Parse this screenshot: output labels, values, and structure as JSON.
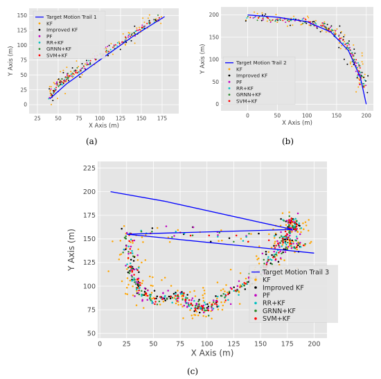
{
  "colors": {
    "background": "#e5e5e5",
    "grid": "#ffffff",
    "target": "#0000ff",
    "kf": "#ffa500",
    "improved_kf": "#000000",
    "pf": "#c000c0",
    "rr_kf": "#00c0c0",
    "grnn_kf": "#2e8b2e",
    "svm_kf": "#ff0000"
  },
  "chart_data": [
    {
      "id": "a",
      "type": "scatter",
      "caption": "(a)",
      "xlabel": "X Axis (m)",
      "ylabel": "Y Axis (m)",
      "xlim": [
        15,
        195
      ],
      "ylim": [
        -15,
        162
      ],
      "xticks": [
        25,
        50,
        75,
        100,
        125,
        150,
        175
      ],
      "yticks": [
        0,
        25,
        50,
        75,
        100,
        125,
        150
      ],
      "legend_position": "upper-left",
      "grid": true,
      "trajectory_points": [
        [
          40,
          10
        ],
        [
          50,
          35
        ],
        [
          60,
          45
        ],
        [
          75,
          58
        ],
        [
          100,
          82
        ],
        [
          125,
          105
        ],
        [
          150,
          128
        ],
        [
          175,
          148
        ]
      ],
      "series": [
        {
          "name": "Target Motion Trail 1",
          "key": "target",
          "kind": "line",
          "values": [
            [
              40,
              10
            ],
            [
              60,
              35
            ],
            [
              100,
              75
            ],
            [
              140,
              115
            ],
            [
              178,
              148
            ]
          ]
        },
        {
          "name": "KF",
          "key": "kf",
          "kind": "scatter"
        },
        {
          "name": "Improved KF",
          "key": "improved_kf",
          "kind": "scatter"
        },
        {
          "name": "PF",
          "key": "pf",
          "kind": "scatter"
        },
        {
          "name": "RR+KF",
          "key": "rr_kf",
          "kind": "scatter"
        },
        {
          "name": "GRNN+KF",
          "key": "grnn_kf",
          "kind": "scatter"
        },
        {
          "name": "SVM+KF",
          "key": "svm_kf",
          "kind": "scatter"
        }
      ]
    },
    {
      "id": "b",
      "type": "scatter",
      "caption": "(b)",
      "xlabel": "X Axis (m)",
      "ylabel": "Y Axis (m)",
      "xlim": [
        -45,
        212
      ],
      "ylim": [
        -15,
        218
      ],
      "xticks": [
        0,
        50,
        100,
        150,
        200
      ],
      "yticks": [
        0,
        50,
        100,
        150,
        200
      ],
      "legend_position": "lower-left",
      "grid": true,
      "trajectory_points": [
        [
          0,
          195
        ],
        [
          50,
          190
        ],
        [
          100,
          185
        ],
        [
          130,
          175
        ],
        [
          155,
          150
        ],
        [
          175,
          115
        ],
        [
          188,
          75
        ],
        [
          195,
          35
        ]
      ],
      "series": [
        {
          "name": "Target Motion Trail 2",
          "key": "target",
          "kind": "line",
          "values": [
            [
              0,
              200
            ],
            [
              50,
              195
            ],
            [
              100,
              185
            ],
            [
              140,
              162
            ],
            [
              170,
              120
            ],
            [
              190,
              60
            ],
            [
              200,
              0
            ]
          ]
        },
        {
          "name": "KF",
          "key": "kf",
          "kind": "scatter"
        },
        {
          "name": "Improved KF",
          "key": "improved_kf",
          "kind": "scatter"
        },
        {
          "name": "PF",
          "key": "pf",
          "kind": "scatter"
        },
        {
          "name": "RR+KF",
          "key": "rr_kf",
          "kind": "scatter"
        },
        {
          "name": "GRNN+KF",
          "key": "grnn_kf",
          "kind": "scatter"
        },
        {
          "name": "SVM+KF",
          "key": "svm_kf",
          "kind": "scatter"
        }
      ]
    },
    {
      "id": "c",
      "type": "scatter",
      "caption": "(c)",
      "xlabel": "X Axis (m)",
      "ylabel": "Y Axis (m)",
      "xlim": [
        -2,
        212
      ],
      "ylim": [
        45,
        232
      ],
      "xticks": [
        0,
        25,
        50,
        75,
        100,
        125,
        150,
        175,
        200
      ],
      "yticks": [
        50,
        75,
        100,
        125,
        150,
        175,
        200,
        225
      ],
      "legend_position": "center-right",
      "grid": true,
      "trajectory_points": [
        [
          185,
          140
        ],
        [
          175,
          150
        ],
        [
          25,
          157
        ],
        [
          30,
          120
        ],
        [
          35,
          100
        ],
        [
          50,
          85
        ],
        [
          75,
          90
        ],
        [
          90,
          78
        ],
        [
          100,
          75
        ],
        [
          125,
          95
        ],
        [
          150,
          115
        ],
        [
          165,
          135
        ],
        [
          175,
          155
        ],
        [
          182,
          165
        ],
        [
          175,
          170
        ]
      ],
      "series": [
        {
          "name": "Target Motion Trail 3",
          "key": "target",
          "kind": "line",
          "values": [
            [
              10,
              200
            ],
            [
              60,
              190
            ],
            [
              180,
              160
            ],
            [
              25,
              155
            ],
            [
              200,
              135
            ]
          ]
        },
        {
          "name": "KF",
          "key": "kf",
          "kind": "scatter"
        },
        {
          "name": "Improved KF",
          "key": "improved_kf",
          "kind": "scatter"
        },
        {
          "name": "PF",
          "key": "pf",
          "kind": "scatter"
        },
        {
          "name": "RR+KF",
          "key": "rr_kf",
          "kind": "scatter"
        },
        {
          "name": "GRNN+KF",
          "key": "grnn_kf",
          "kind": "scatter"
        },
        {
          "name": "SVM+KF",
          "key": "svm_kf",
          "kind": "scatter"
        }
      ]
    }
  ]
}
